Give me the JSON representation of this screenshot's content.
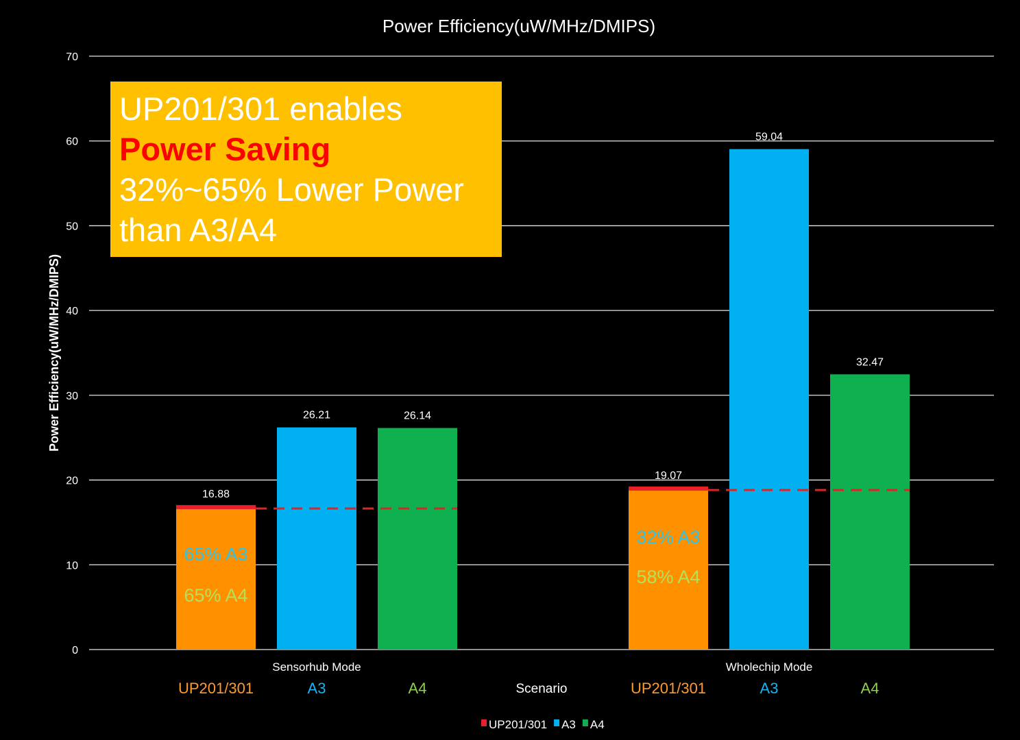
{
  "chart_data": {
    "type": "bar",
    "title": "Power Efficiency(uW/MHz/DMIPS)",
    "ylabel": "Power Efficiency(uW/MHz/DMIPS)",
    "xlabel": "Scenario",
    "ylim": [
      0,
      70
    ],
    "yticks": [
      0,
      10,
      20,
      30,
      40,
      50,
      60,
      70
    ],
    "grid": true,
    "legend_position": "bottom",
    "categories": [
      "Sensorhub Mode",
      "Wholechip Mode"
    ],
    "series": [
      {
        "name": "UP201/301",
        "values": [
          16.88,
          19.07
        ],
        "color": "#ff9000",
        "legend_color": "#e8202a",
        "labels": [
          "UP201/301",
          "UP201/301"
        ],
        "label_color": "#ff9a2e"
      },
      {
        "name": "A3",
        "values": [
          26.21,
          59.04
        ],
        "color": "#00b0f0",
        "legend_color": "#00b0f0",
        "labels": [
          "A3",
          "A3"
        ],
        "label_color": "#1ab2f0"
      },
      {
        "name": "A4",
        "values": [
          26.14,
          32.47
        ],
        "color": "#0fb04f",
        "legend_color": "#0fb04f",
        "labels": [
          "A4",
          "A4"
        ],
        "label_color": "#8fce4f"
      }
    ],
    "value_labels": [
      "16.88",
      "26.21",
      "26.14",
      "19.07",
      "59.04",
      "32.47"
    ],
    "bar_annotations": [
      {
        "group": 0,
        "lines": [
          {
            "text": "65% A3",
            "color": "#2fc4e6"
          },
          {
            "text": "65% A4",
            "color": "#b6e05a"
          }
        ]
      },
      {
        "group": 1,
        "lines": [
          {
            "text": "32% A3",
            "color": "#2fc4e6"
          },
          {
            "text": "58% A4",
            "color": "#b6e05a"
          }
        ]
      }
    ],
    "reference_color": "#d62828"
  },
  "callout": {
    "line1": "UP201/301 enables",
    "line2": "Power Saving",
    "line3": "32%~65% Lower Power",
    "line4": "than A3/A4"
  }
}
